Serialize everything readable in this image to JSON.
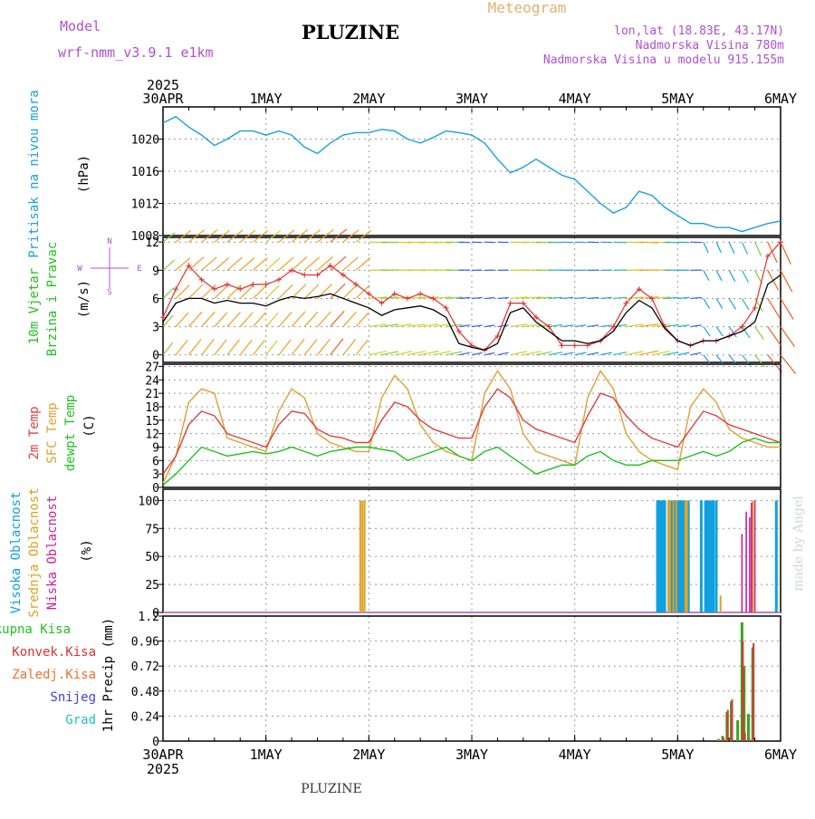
{
  "header": {
    "model_label": "Model",
    "model_name": "wrf-nmm_v3.9.1  e1km",
    "station": "PLUZINE",
    "meteogram": "Meteogram",
    "lonlat": "lon,lat (18.83E, 43.17N)",
    "elevation": "Nadmorska Visina 780m",
    "model_elevation": "Nadmorska Visina u modelu 915.155m",
    "footer_station": "PLUZINE",
    "watermark": "made by Angel"
  },
  "time_axis": {
    "year": "2025",
    "ticks": [
      "30APR",
      "1MAY",
      "2MAY",
      "3MAY",
      "4MAY",
      "5MAY",
      "6MAY"
    ]
  },
  "colors": {
    "pressure": "#1aa0e0",
    "wind_speed": "#000000",
    "gust": "#e03030",
    "temp2m": "#e04040",
    "sfc_temp": "#e0a030",
    "dewpt": "#20c020",
    "high_cloud": "#10a0e0",
    "mid_cloud": "#e0a020",
    "low_cloud": "#d02090",
    "total_precip": "#40a020",
    "conv_precip": "#e03030"
  },
  "chart_data": [
    {
      "type": "line",
      "name": "pressure",
      "ylabel_main": "Pritisak na nivou mora",
      "ylabel_unit": "(hPa)",
      "ylim": [
        1008,
        1024
      ],
      "yticks": [
        "1008",
        "1012",
        "1016",
        "1020"
      ],
      "x": [
        0,
        3,
        6,
        9,
        12,
        15,
        18,
        21,
        24,
        27,
        30,
        33,
        36,
        39,
        42,
        45,
        48,
        51,
        54,
        57,
        60,
        63,
        66,
        69,
        72,
        75,
        78,
        81,
        84,
        87,
        90,
        93,
        96,
        99,
        102,
        105,
        108,
        111,
        114,
        117,
        120,
        123,
        126,
        129,
        132,
        135,
        138,
        141,
        144
      ],
      "values": [
        1022.0,
        1022.8,
        1021.5,
        1020.5,
        1019.2,
        1020.0,
        1021.0,
        1021.0,
        1020.5,
        1021.0,
        1020.5,
        1019.0,
        1018.2,
        1019.5,
        1020.5,
        1020.8,
        1020.8,
        1021.2,
        1021.0,
        1020.0,
        1019.5,
        1020.2,
        1021.0,
        1020.8,
        1020.5,
        1019.5,
        1017.5,
        1015.8,
        1016.5,
        1017.5,
        1016.5,
        1015.5,
        1015.0,
        1013.5,
        1012.0,
        1010.8,
        1011.5,
        1013.5,
        1013.0,
        1011.5,
        1010.5,
        1009.5,
        1009.5,
        1009.0,
        1009.0,
        1008.5,
        1009.0,
        1009.5,
        1009.8
      ]
    },
    {
      "type": "line",
      "name": "wind",
      "ylabel_a": "10m Vjetar",
      "ylabel_b": "Brzina i Pravac",
      "ylabel_unit": "(m/s)",
      "compass_w": "W",
      "compass_e": "E",
      "compass_n": "N",
      "compass_s": "S",
      "ylim": [
        -0.8,
        12.5
      ],
      "yticks": [
        "0",
        "3",
        "6",
        "9",
        "12"
      ],
      "x": [
        0,
        3,
        6,
        9,
        12,
        15,
        18,
        21,
        24,
        27,
        30,
        33,
        36,
        39,
        42,
        45,
        48,
        51,
        54,
        57,
        60,
        63,
        66,
        69,
        72,
        75,
        78,
        81,
        84,
        87,
        90,
        93,
        96,
        99,
        102,
        105,
        108,
        111,
        114,
        117,
        120,
        123,
        126,
        129,
        132,
        135,
        138,
        141,
        144
      ],
      "speed": [
        3.5,
        5.5,
        6.0,
        6.0,
        5.5,
        5.8,
        5.5,
        5.5,
        5.2,
        5.8,
        6.2,
        6.0,
        6.2,
        6.5,
        6.0,
        5.5,
        5.0,
        4.2,
        4.8,
        5.0,
        5.2,
        4.8,
        4.0,
        1.2,
        0.8,
        0.5,
        1.2,
        4.5,
        5.0,
        3.5,
        2.5,
        1.5,
        1.5,
        1.2,
        1.5,
        2.5,
        4.5,
        5.8,
        5.0,
        2.8,
        1.5,
        1.0,
        1.5,
        1.5,
        2.0,
        2.5,
        3.5,
        7.5,
        8.5
      ],
      "gust": [
        4.0,
        7.0,
        9.5,
        8.0,
        7.0,
        7.5,
        7.0,
        7.5,
        7.5,
        8.0,
        9.0,
        8.5,
        8.5,
        9.5,
        8.5,
        7.5,
        6.5,
        5.5,
        6.5,
        6.0,
        6.5,
        6.0,
        5.0,
        2.5,
        1.0,
        0.5,
        2.0,
        5.5,
        5.5,
        4.0,
        3.0,
        1.0,
        1.0,
        1.0,
        1.5,
        3.0,
        5.5,
        7.0,
        6.0,
        3.0,
        1.5,
        1.0,
        1.5,
        1.5,
        2.0,
        3.0,
        5.0,
        10.5,
        12.0
      ]
    },
    {
      "type": "line",
      "name": "temperature",
      "ylabel_t2m": "2m Temp",
      "ylabel_sfc": "SFC Temp",
      "ylabel_dew": "dewpt Temp",
      "ylabel_unit": "(C)",
      "ylim": [
        0,
        27.5
      ],
      "yticks": [
        "0",
        "3",
        "6",
        "9",
        "12",
        "15",
        "18",
        "21",
        "24",
        "27"
      ],
      "x": [
        0,
        3,
        6,
        9,
        12,
        15,
        18,
        21,
        24,
        27,
        30,
        33,
        36,
        39,
        42,
        45,
        48,
        51,
        54,
        57,
        60,
        63,
        66,
        69,
        72,
        75,
        78,
        81,
        84,
        87,
        90,
        93,
        96,
        99,
        102,
        105,
        108,
        111,
        114,
        117,
        120,
        123,
        126,
        129,
        132,
        135,
        138,
        141,
        144
      ],
      "t2m": [
        3,
        7,
        14,
        17,
        16,
        12,
        11,
        10,
        9,
        14,
        17,
        16.5,
        13,
        11.5,
        11,
        10,
        10,
        15,
        19,
        18,
        15,
        13,
        12,
        11,
        11,
        18,
        22,
        20,
        15,
        13,
        12,
        11,
        10,
        16,
        21,
        20,
        16,
        13,
        11,
        10,
        9,
        13,
        17,
        16,
        14,
        13,
        12,
        11,
        10
      ],
      "sfc": [
        1,
        7,
        19,
        22,
        21,
        11,
        10,
        9,
        8,
        17,
        22,
        20,
        12,
        10,
        9,
        8,
        8,
        20,
        25,
        22,
        14,
        10,
        8,
        7,
        6,
        21,
        26,
        22,
        12,
        8,
        7,
        6,
        5,
        20,
        26,
        22,
        12,
        8,
        6,
        5,
        4,
        18,
        22,
        19,
        13,
        11,
        10,
        9,
        9
      ],
      "dewpt": [
        0.5,
        3,
        6,
        9,
        8,
        7,
        7.5,
        8,
        7.5,
        8,
        9,
        8,
        7,
        8,
        8.5,
        9,
        9,
        8.5,
        8,
        6,
        7,
        8,
        9,
        7,
        6,
        8,
        9,
        7,
        5,
        3,
        4,
        5,
        5,
        7,
        8,
        6,
        5,
        5,
        6,
        6,
        6,
        7,
        8,
        7,
        8,
        10,
        11,
        10,
        10
      ]
    },
    {
      "type": "bar",
      "name": "cloud_cover",
      "ylabel_high": "Visoka Oblacnost",
      "ylabel_mid": "Srednja Oblacnost",
      "ylabel_low": "Niska Oblacnost",
      "ylabel_unit": "(%)",
      "ylim": [
        0,
        100
      ],
      "yticks": [
        "0",
        "25",
        "50",
        "75",
        "100"
      ],
      "high": [
        [
          115.3,
          100
        ],
        [
          115.6,
          100
        ],
        [
          115.9,
          100
        ],
        [
          116.2,
          100
        ],
        [
          116.6,
          100
        ],
        [
          117.0,
          100
        ],
        [
          118.5,
          100
        ],
        [
          118.8,
          100
        ],
        [
          119.4,
          100
        ],
        [
          120.0,
          100
        ],
        [
          120.5,
          100
        ],
        [
          121.0,
          100
        ],
        [
          121.4,
          100
        ],
        [
          122.5,
          100
        ],
        [
          125.5,
          100
        ],
        [
          126.5,
          100
        ],
        [
          127.0,
          100
        ],
        [
          127.4,
          100
        ],
        [
          127.8,
          100
        ],
        [
          128.3,
          100
        ],
        [
          129.0,
          100
        ],
        [
          143.0,
          100
        ]
      ],
      "mid": [
        [
          46.0,
          100
        ],
        [
          46.5,
          100
        ],
        [
          47.0,
          100
        ],
        [
          117.8,
          100
        ],
        [
          118.2,
          100
        ],
        [
          119.0,
          100
        ],
        [
          119.7,
          100
        ],
        [
          121.8,
          100
        ],
        [
          122.2,
          100
        ],
        [
          130.0,
          15
        ],
        [
          137.5,
          100
        ]
      ],
      "low": [
        [
          135.0,
          70
        ],
        [
          136.0,
          90
        ],
        [
          136.8,
          85
        ],
        [
          137.2,
          98
        ],
        [
          138.0,
          100
        ]
      ]
    },
    {
      "type": "bar",
      "name": "precipitation",
      "legend_total": "Ukupna Kisa",
      "legend_conv": "Konvek.Kisa",
      "legend_frz": "Zaledj.Kisa",
      "legend_snow": "Snijeg",
      "legend_grad": "Grad",
      "ylabel_unit": "1hr Precip (mm)",
      "ylim": [
        0,
        1.2
      ],
      "yticks": [
        "0",
        "0.24",
        "0.48",
        "0.72",
        "0.96",
        "1.2"
      ],
      "total": [
        [
          129.5,
          0.02
        ],
        [
          130.5,
          0.05
        ],
        [
          131.5,
          0.28
        ],
        [
          132.5,
          0.38
        ],
        [
          134.0,
          0.2
        ],
        [
          135.0,
          1.14
        ],
        [
          135.5,
          0.72
        ],
        [
          136.5,
          0.26
        ],
        [
          137.5,
          0.9
        ]
      ],
      "conv": [
        [
          130.7,
          0.03
        ],
        [
          131.7,
          0.3
        ],
        [
          132.7,
          0.4
        ],
        [
          135.2,
          0.96
        ],
        [
          135.7,
          0.08
        ],
        [
          136.7,
          0.02
        ],
        [
          137.7,
          0.94
        ]
      ]
    }
  ]
}
